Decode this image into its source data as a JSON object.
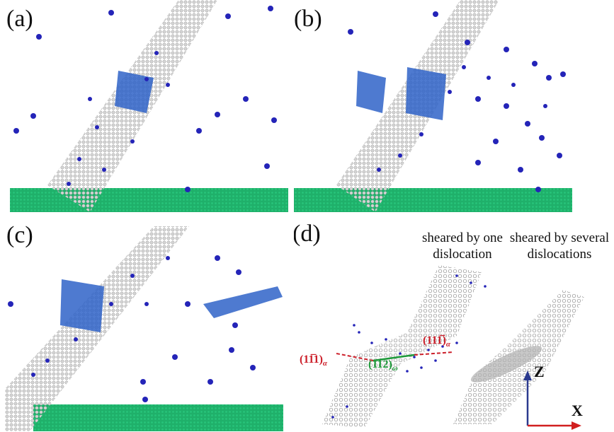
{
  "panels": {
    "a": {
      "label": "(a)"
    },
    "b": {
      "label": "(b)"
    },
    "c": {
      "label": "(c)"
    },
    "d": {
      "label": "(d)",
      "caption_left_line1": "sheared by one",
      "caption_left_line2": "dislocation",
      "caption_right_line1": "sheared by several",
      "caption_right_line2": "dislocations",
      "plane_left": "(11̅1)",
      "plane_left_sub": "α",
      "plane_right": "(111̅)",
      "plane_right_sub": "α",
      "plane_center": "(112)",
      "plane_center_sub": "ω",
      "axis_z": "Z",
      "axis_x": "X"
    }
  },
  "colors": {
    "matrix": "#20b36a",
    "precipitate": "#c9c9c9",
    "solute": "#2424b8",
    "cluster": "#2a6fd0",
    "plane_red": "#cc1f2a",
    "plane_green": "#1e9a3a",
    "axis_z": "#2b3a8f",
    "axis_x": "#d11f1f"
  }
}
